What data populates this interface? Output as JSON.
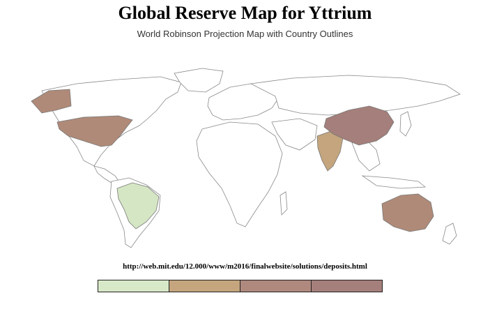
{
  "header": {
    "title": "Global Reserve Map for Yttrium",
    "subtitle": "World Robinson Projection Map with Country Outlines"
  },
  "source_url": "http://web.mit.edu/12.000/www/m2016/finalwebsite/solutions/deposits.html",
  "colors": {
    "background_land": "#ffffff",
    "outline": "#888888",
    "brazil": "#d5e6c4",
    "india": "#c4a57e",
    "usa": "#b08a78",
    "china": "#a57f7b",
    "australia": "#b08a78"
  },
  "legend": {
    "swatches": [
      "#d8e9c9",
      "#c4a57e",
      "#b0897e",
      "#a57f7b"
    ]
  },
  "highlighted_countries": [
    "Brazil",
    "India",
    "United States",
    "China",
    "Australia"
  ]
}
